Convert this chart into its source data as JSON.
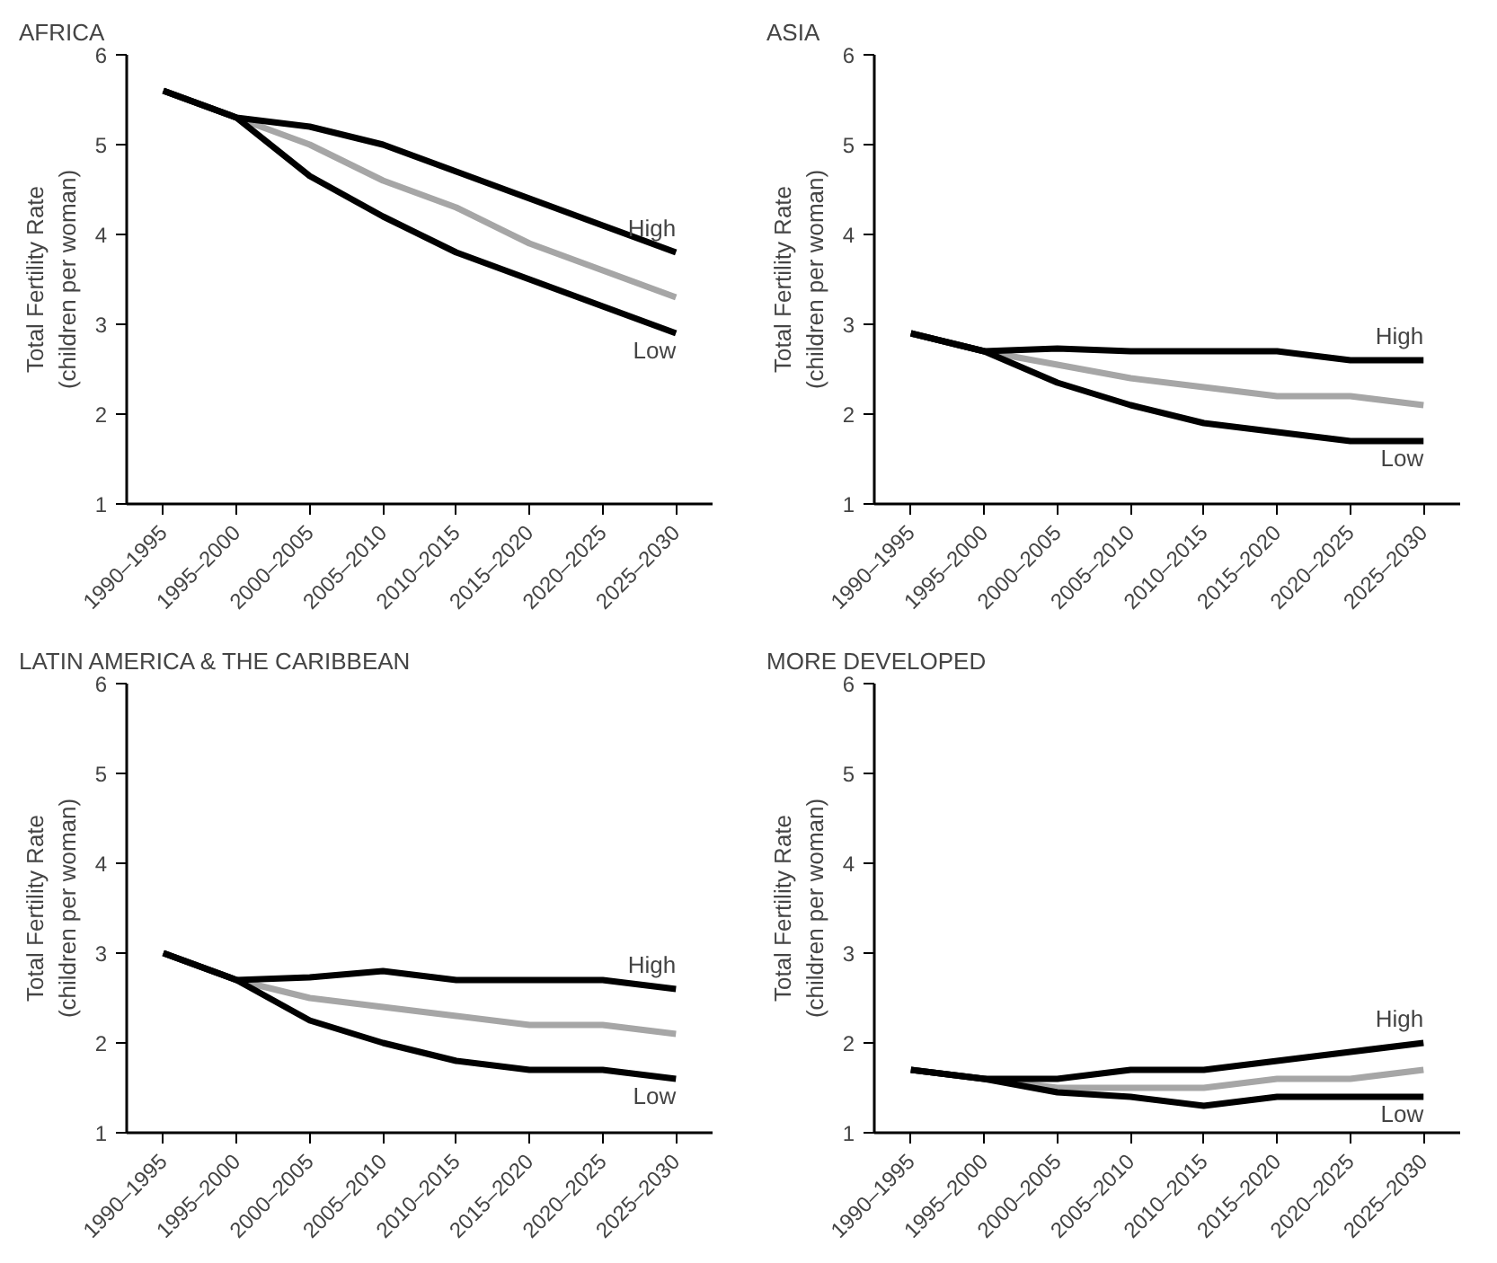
{
  "chart_data": [
    {
      "type": "line",
      "title": "AFRICA",
      "ylabel": "Total Fertility Rate\n(children per woman)",
      "categories": [
        "1990–1995",
        "1995–2000",
        "2000–2005",
        "2005–2010",
        "2010–2015",
        "2015–2020",
        "2020–2025",
        "2025–2030"
      ],
      "ylim": [
        1,
        6
      ],
      "yticks": [
        1,
        2,
        3,
        4,
        5,
        6
      ],
      "grid": false,
      "legend": false,
      "marker": "none",
      "series": [
        {
          "name": "High",
          "color": "#000000",
          "values": [
            5.6,
            5.3,
            5.2,
            5.0,
            4.7,
            4.4,
            4.1,
            3.8
          ]
        },
        {
          "color": "#a6a6a6",
          "values": [
            5.6,
            5.3,
            5.0,
            4.6,
            4.3,
            3.9,
            3.6,
            3.3
          ]
        },
        {
          "name": "Low",
          "color": "#000000",
          "values": [
            5.6,
            5.3,
            4.65,
            4.2,
            3.8,
            3.5,
            3.2,
            2.9
          ]
        }
      ]
    },
    {
      "type": "line",
      "title": "ASIA",
      "ylabel": "Total Fertility Rate\n(children per woman)",
      "categories": [
        "1990–1995",
        "1995–2000",
        "2000–2005",
        "2005–2010",
        "2010–2015",
        "2015–2020",
        "2020–2025",
        "2025–2030"
      ],
      "ylim": [
        1,
        6
      ],
      "yticks": [
        1,
        2,
        3,
        4,
        5,
        6
      ],
      "grid": false,
      "legend": false,
      "marker": "none",
      "series": [
        {
          "name": "High",
          "color": "#000000",
          "values": [
            2.9,
            2.7,
            2.73,
            2.7,
            2.7,
            2.7,
            2.6,
            2.6
          ]
        },
        {
          "color": "#a6a6a6",
          "values": [
            2.9,
            2.7,
            2.55,
            2.4,
            2.3,
            2.2,
            2.2,
            2.1
          ]
        },
        {
          "name": "Low",
          "color": "#000000",
          "values": [
            2.9,
            2.7,
            2.35,
            2.1,
            1.9,
            1.8,
            1.7,
            1.7
          ]
        }
      ]
    },
    {
      "type": "line",
      "title": "LATIN AMERICA & THE CARIBBEAN",
      "ylabel": "Total Fertility Rate\n(children per woman)",
      "categories": [
        "1990–1995",
        "1995–2000",
        "2000–2005",
        "2005–2010",
        "2010–2015",
        "2015–2020",
        "2020–2025",
        "2025–2030"
      ],
      "ylim": [
        1,
        6
      ],
      "yticks": [
        1,
        2,
        3,
        4,
        5,
        6
      ],
      "grid": false,
      "legend": false,
      "marker": "none",
      "series": [
        {
          "name": "High",
          "color": "#000000",
          "values": [
            3.0,
            2.7,
            2.73,
            2.8,
            2.7,
            2.7,
            2.7,
            2.6
          ]
        },
        {
          "color": "#a6a6a6",
          "values": [
            3.0,
            2.7,
            2.5,
            2.4,
            2.3,
            2.2,
            2.2,
            2.1
          ]
        },
        {
          "name": "Low",
          "color": "#000000",
          "values": [
            3.0,
            2.7,
            2.25,
            2.0,
            1.8,
            1.7,
            1.7,
            1.6
          ]
        }
      ]
    },
    {
      "type": "line",
      "title": "MORE DEVELOPED",
      "ylabel": "Total Fertility Rate\n(children per woman)",
      "categories": [
        "1990–1995",
        "1995–2000",
        "2000–2005",
        "2005–2010",
        "2010–2015",
        "2015–2020",
        "2020–2025",
        "2025–2030"
      ],
      "ylim": [
        1,
        6
      ],
      "yticks": [
        1,
        2,
        3,
        4,
        5,
        6
      ],
      "grid": false,
      "legend": false,
      "marker": "none",
      "series": [
        {
          "name": "High",
          "color": "#000000",
          "values": [
            1.7,
            1.6,
            1.6,
            1.7,
            1.7,
            1.8,
            1.9,
            2.0
          ]
        },
        {
          "color": "#a6a6a6",
          "values": [
            1.7,
            1.6,
            1.5,
            1.5,
            1.5,
            1.6,
            1.6,
            1.7
          ]
        },
        {
          "name": "Low",
          "color": "#000000",
          "values": [
            1.7,
            1.6,
            1.45,
            1.4,
            1.3,
            1.4,
            1.4,
            1.4
          ]
        }
      ]
    }
  ]
}
